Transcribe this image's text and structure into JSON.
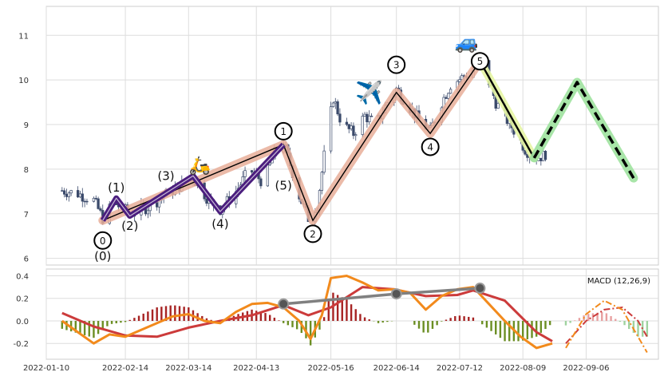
{
  "chart_data": [
    {
      "type": "candlestick",
      "panel": "price",
      "xlim": [
        "2022-01-10",
        "2022-10-08"
      ],
      "ylim": [
        5.85,
        11.65
      ],
      "x_ticks": [
        "2022-01-10",
        "2022-02-14",
        "2022-03-14",
        "2022-04-13",
        "2022-05-16",
        "2022-06-14",
        "2022-07-12",
        "2022-08-09",
        "2022-09-06"
      ],
      "y_ticks": [
        "6",
        "7",
        "8",
        "9",
        "10",
        "11"
      ],
      "grid": true,
      "candle_color": "#3b4a6b",
      "price_path": [
        [
          "2022-01-17",
          7.52
        ],
        [
          "2022-01-24",
          7.45
        ],
        [
          "2022-01-31",
          7.3
        ],
        [
          "2022-02-04",
          6.9
        ],
        [
          "2022-02-09",
          7.25
        ],
        [
          "2022-02-16",
          7.0
        ],
        [
          "2022-02-24",
          7.15
        ],
        [
          "2022-03-06",
          7.5
        ],
        [
          "2022-03-16",
          7.8
        ],
        [
          "2022-03-23",
          7.3
        ],
        [
          "2022-03-28",
          7.1
        ],
        [
          "2022-04-04",
          7.5
        ],
        [
          "2022-04-10",
          8.0
        ],
        [
          "2022-04-16",
          7.7
        ],
        [
          "2022-04-21",
          8.35
        ],
        [
          "2022-04-25",
          8.6
        ],
        [
          "2022-04-28",
          8.1
        ],
        [
          "2022-05-02",
          7.4
        ],
        [
          "2022-05-06",
          6.9
        ],
        [
          "2022-05-10",
          7.2
        ],
        [
          "2022-05-13",
          8.3
        ],
        [
          "2022-05-17",
          9.6
        ],
        [
          "2022-05-21",
          9.0
        ],
        [
          "2022-05-26",
          8.8
        ],
        [
          "2022-05-31",
          9.2
        ],
        [
          "2022-06-05",
          9.0
        ],
        [
          "2022-06-10",
          9.5
        ],
        [
          "2022-06-14",
          9.8
        ],
        [
          "2022-06-19",
          9.45
        ],
        [
          "2022-06-24",
          9.1
        ],
        [
          "2022-06-29",
          8.85
        ],
        [
          "2022-07-03",
          9.4
        ],
        [
          "2022-07-08",
          9.9
        ],
        [
          "2022-07-13",
          10.05
        ],
        [
          "2022-07-17",
          10.2
        ],
        [
          "2022-07-21",
          10.5
        ],
        [
          "2022-07-24",
          10.1
        ],
        [
          "2022-07-28",
          9.5
        ],
        [
          "2022-08-02",
          9.1
        ],
        [
          "2022-08-06",
          8.8
        ],
        [
          "2022-08-10",
          8.45
        ],
        [
          "2022-08-14",
          8.25
        ],
        [
          "2022-08-18",
          8.3
        ],
        [
          "2022-08-21",
          8.45
        ]
      ],
      "elliott_waves": {
        "minor_points": [
          {
            "date": "2022-02-04",
            "value": 6.85,
            "label": "(0)"
          },
          {
            "date": "2022-02-10",
            "value": 7.35,
            "label": "(1)"
          },
          {
            "date": "2022-02-16",
            "value": 6.95,
            "label": "(2)"
          },
          {
            "date": "2022-03-16",
            "value": 7.85,
            "label": "(3)"
          },
          {
            "date": "2022-03-28",
            "value": 7.05,
            "label": "(4)"
          },
          {
            "date": "2022-04-25",
            "value": 8.55,
            "label": "(5)"
          }
        ],
        "major_points": [
          {
            "date": "2022-02-04",
            "value": 6.85,
            "label": "0"
          },
          {
            "date": "2022-04-25",
            "value": 8.55,
            "label": "1"
          },
          {
            "date": "2022-05-08",
            "value": 6.85,
            "label": "2"
          },
          {
            "date": "2022-06-14",
            "value": 9.72,
            "label": "3"
          },
          {
            "date": "2022-06-29",
            "value": 8.8,
            "label": "4"
          },
          {
            "date": "2022-07-21",
            "value": 10.42,
            "label": "5"
          }
        ],
        "correction": [
          {
            "date": "2022-07-21",
            "value": 10.42
          },
          {
            "date": "2022-08-14",
            "value": 8.25
          }
        ],
        "projection": [
          {
            "date": "2022-08-14",
            "value": 8.25
          },
          {
            "date": "2022-09-02",
            "value": 9.95
          },
          {
            "date": "2022-09-27",
            "value": 7.8
          }
        ]
      },
      "colors": {
        "minor_wave": "#4b1e7e",
        "major_band": "#e8ae99",
        "correction_band": "#e6f5a3",
        "projection_band": "#9fe29f",
        "wave_line": "#000000"
      },
      "markers": {
        "scooter": {
          "icon": "scooter-icon",
          "glyph": "🛵"
        },
        "airplane": {
          "icon": "airplane-icon",
          "glyph": "✈️"
        },
        "car": {
          "icon": "car-icon",
          "glyph": "🚙"
        }
      }
    },
    {
      "type": "macd",
      "panel": "indicator",
      "legend": "MACD (12,26,9)",
      "legend_position": "top-right",
      "ylim": [
        -0.34,
        0.46
      ],
      "y_ticks": [
        "0.4",
        "0.2",
        "0.0",
        "-0.2"
      ],
      "grid": true,
      "macd_line": [
        [
          "2022-01-17",
          0.0
        ],
        [
          "2022-01-24",
          -0.1
        ],
        [
          "2022-01-31",
          -0.2
        ],
        [
          "2022-02-07",
          -0.12
        ],
        [
          "2022-02-14",
          -0.14
        ],
        [
          "2022-02-21",
          -0.08
        ],
        [
          "2022-02-28",
          -0.02
        ],
        [
          "2022-03-07",
          0.04
        ],
        [
          "2022-03-14",
          0.06
        ],
        [
          "2022-03-21",
          0.0
        ],
        [
          "2022-03-28",
          -0.02
        ],
        [
          "2022-04-04",
          0.08
        ],
        [
          "2022-04-11",
          0.15
        ],
        [
          "2022-04-18",
          0.16
        ],
        [
          "2022-04-25",
          0.12
        ],
        [
          "2022-05-02",
          0.0
        ],
        [
          "2022-05-07",
          -0.16
        ],
        [
          "2022-05-12",
          0.05
        ],
        [
          "2022-05-16",
          0.38
        ],
        [
          "2022-05-23",
          0.4
        ],
        [
          "2022-05-30",
          0.34
        ],
        [
          "2022-06-06",
          0.27
        ],
        [
          "2022-06-13",
          0.28
        ],
        [
          "2022-06-20",
          0.25
        ],
        [
          "2022-06-27",
          0.1
        ],
        [
          "2022-07-04",
          0.22
        ],
        [
          "2022-07-11",
          0.28
        ],
        [
          "2022-07-18",
          0.3
        ],
        [
          "2022-07-25",
          0.15
        ],
        [
          "2022-08-01",
          0.0
        ],
        [
          "2022-08-08",
          -0.14
        ],
        [
          "2022-08-15",
          -0.24
        ],
        [
          "2022-08-22",
          -0.2
        ]
      ],
      "signal_line": [
        [
          "2022-01-17",
          0.07
        ],
        [
          "2022-01-31",
          -0.05
        ],
        [
          "2022-02-14",
          -0.13
        ],
        [
          "2022-02-28",
          -0.14
        ],
        [
          "2022-03-14",
          -0.06
        ],
        [
          "2022-03-28",
          0.0
        ],
        [
          "2022-04-11",
          0.05
        ],
        [
          "2022-04-25",
          0.14
        ],
        [
          "2022-05-06",
          0.05
        ],
        [
          "2022-05-16",
          0.12
        ],
        [
          "2022-05-30",
          0.3
        ],
        [
          "2022-06-13",
          0.28
        ],
        [
          "2022-06-27",
          0.22
        ],
        [
          "2022-07-11",
          0.23
        ],
        [
          "2022-07-18",
          0.27
        ],
        [
          "2022-08-01",
          0.18
        ],
        [
          "2022-08-15",
          -0.1
        ],
        [
          "2022-08-22",
          -0.18
        ]
      ],
      "projected_macd": [
        [
          "2022-08-28",
          -0.24
        ],
        [
          "2022-09-06",
          0.06
        ],
        [
          "2022-09-14",
          0.18
        ],
        [
          "2022-09-22",
          0.1
        ],
        [
          "2022-09-29",
          -0.14
        ],
        [
          "2022-10-03",
          -0.28
        ]
      ],
      "projected_signal": [
        [
          "2022-08-28",
          -0.2
        ],
        [
          "2022-09-06",
          0.0
        ],
        [
          "2022-09-14",
          0.1
        ],
        [
          "2022-09-22",
          0.12
        ],
        [
          "2022-09-29",
          0.0
        ],
        [
          "2022-10-03",
          -0.14
        ]
      ],
      "divergence": [
        {
          "date": "2022-04-25",
          "value": 0.15
        },
        {
          "date": "2022-06-14",
          "value": 0.24
        },
        {
          "date": "2022-07-21",
          "value": 0.29
        }
      ],
      "colors": {
        "macd": "#f28a1c",
        "signal": "#cc3b3b",
        "hist_pos": "#a72323",
        "hist_neg": "#6b8e23",
        "hist_proj_pos": "#e8a0a0",
        "hist_proj_neg": "#9fd29f",
        "divergence": "#808080",
        "divergence_marker": "#555555"
      }
    }
  ]
}
